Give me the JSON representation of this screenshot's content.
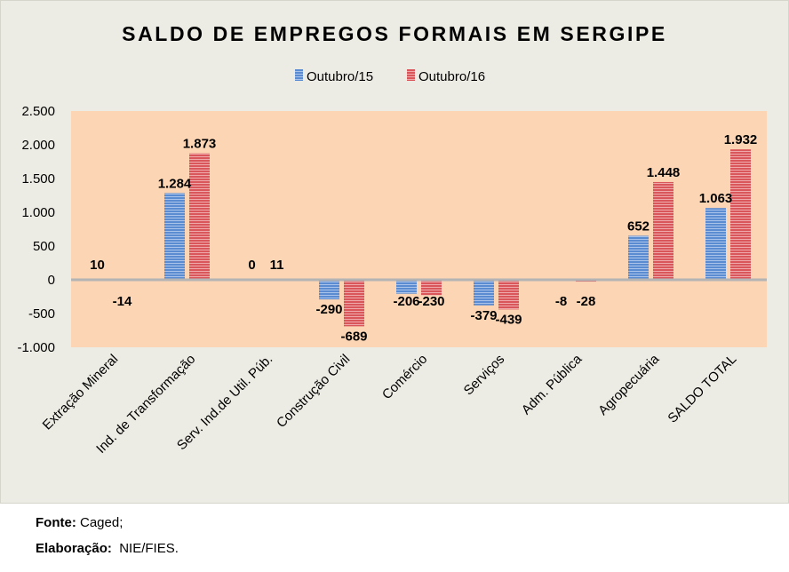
{
  "chart_data": {
    "type": "bar",
    "title": "SALDO DE EMPREGOS FORMAIS EM SERGIPE",
    "xlabel": "",
    "ylabel": "",
    "ylim": [
      -1000,
      2500
    ],
    "yticks": [
      2500,
      2000,
      1500,
      1000,
      500,
      0,
      -500,
      -1000
    ],
    "ytick_labels": [
      "2.500",
      "2.000",
      "1.500",
      "1.000",
      "500",
      "0",
      "-500",
      "-1.000"
    ],
    "grid": false,
    "legend_position": "top-center",
    "categories": [
      "Extração Mineral",
      "Ind. de Transformação",
      "Serv. Ind.de Util. Púb.",
      "Construção Civil",
      "Comércio",
      "Serviços",
      "Adm. Pública",
      "Agropecuária",
      "SALDO TOTAL"
    ],
    "series": [
      {
        "name": "Outubro/15",
        "color": "#5b8bd0",
        "values": [
          10,
          1284,
          0,
          -290,
          -206,
          -379,
          -8,
          652,
          1063
        ],
        "labels": [
          "10",
          "1.284",
          "0",
          "-290",
          "-206",
          "-379",
          "-8",
          "652",
          "1.063"
        ]
      },
      {
        "name": "Outubro/16",
        "color": "#d9575a",
        "values": [
          -14,
          1873,
          11,
          -689,
          -230,
          -439,
          -28,
          1448,
          1932
        ],
        "labels": [
          "-14",
          "1.873",
          "11",
          "-689",
          "-230",
          "-439",
          "-28",
          "1.448",
          "1.932"
        ]
      }
    ]
  },
  "colors": {
    "plot_background": "#fcd5b4",
    "chart_background": "#edece4",
    "zero_line": "#b4b4b4"
  },
  "footer": {
    "source_label": "Fonte:",
    "source_value": "Caged;",
    "credit_label": "Elaboração:",
    "credit_value": "NIE/FIES."
  }
}
